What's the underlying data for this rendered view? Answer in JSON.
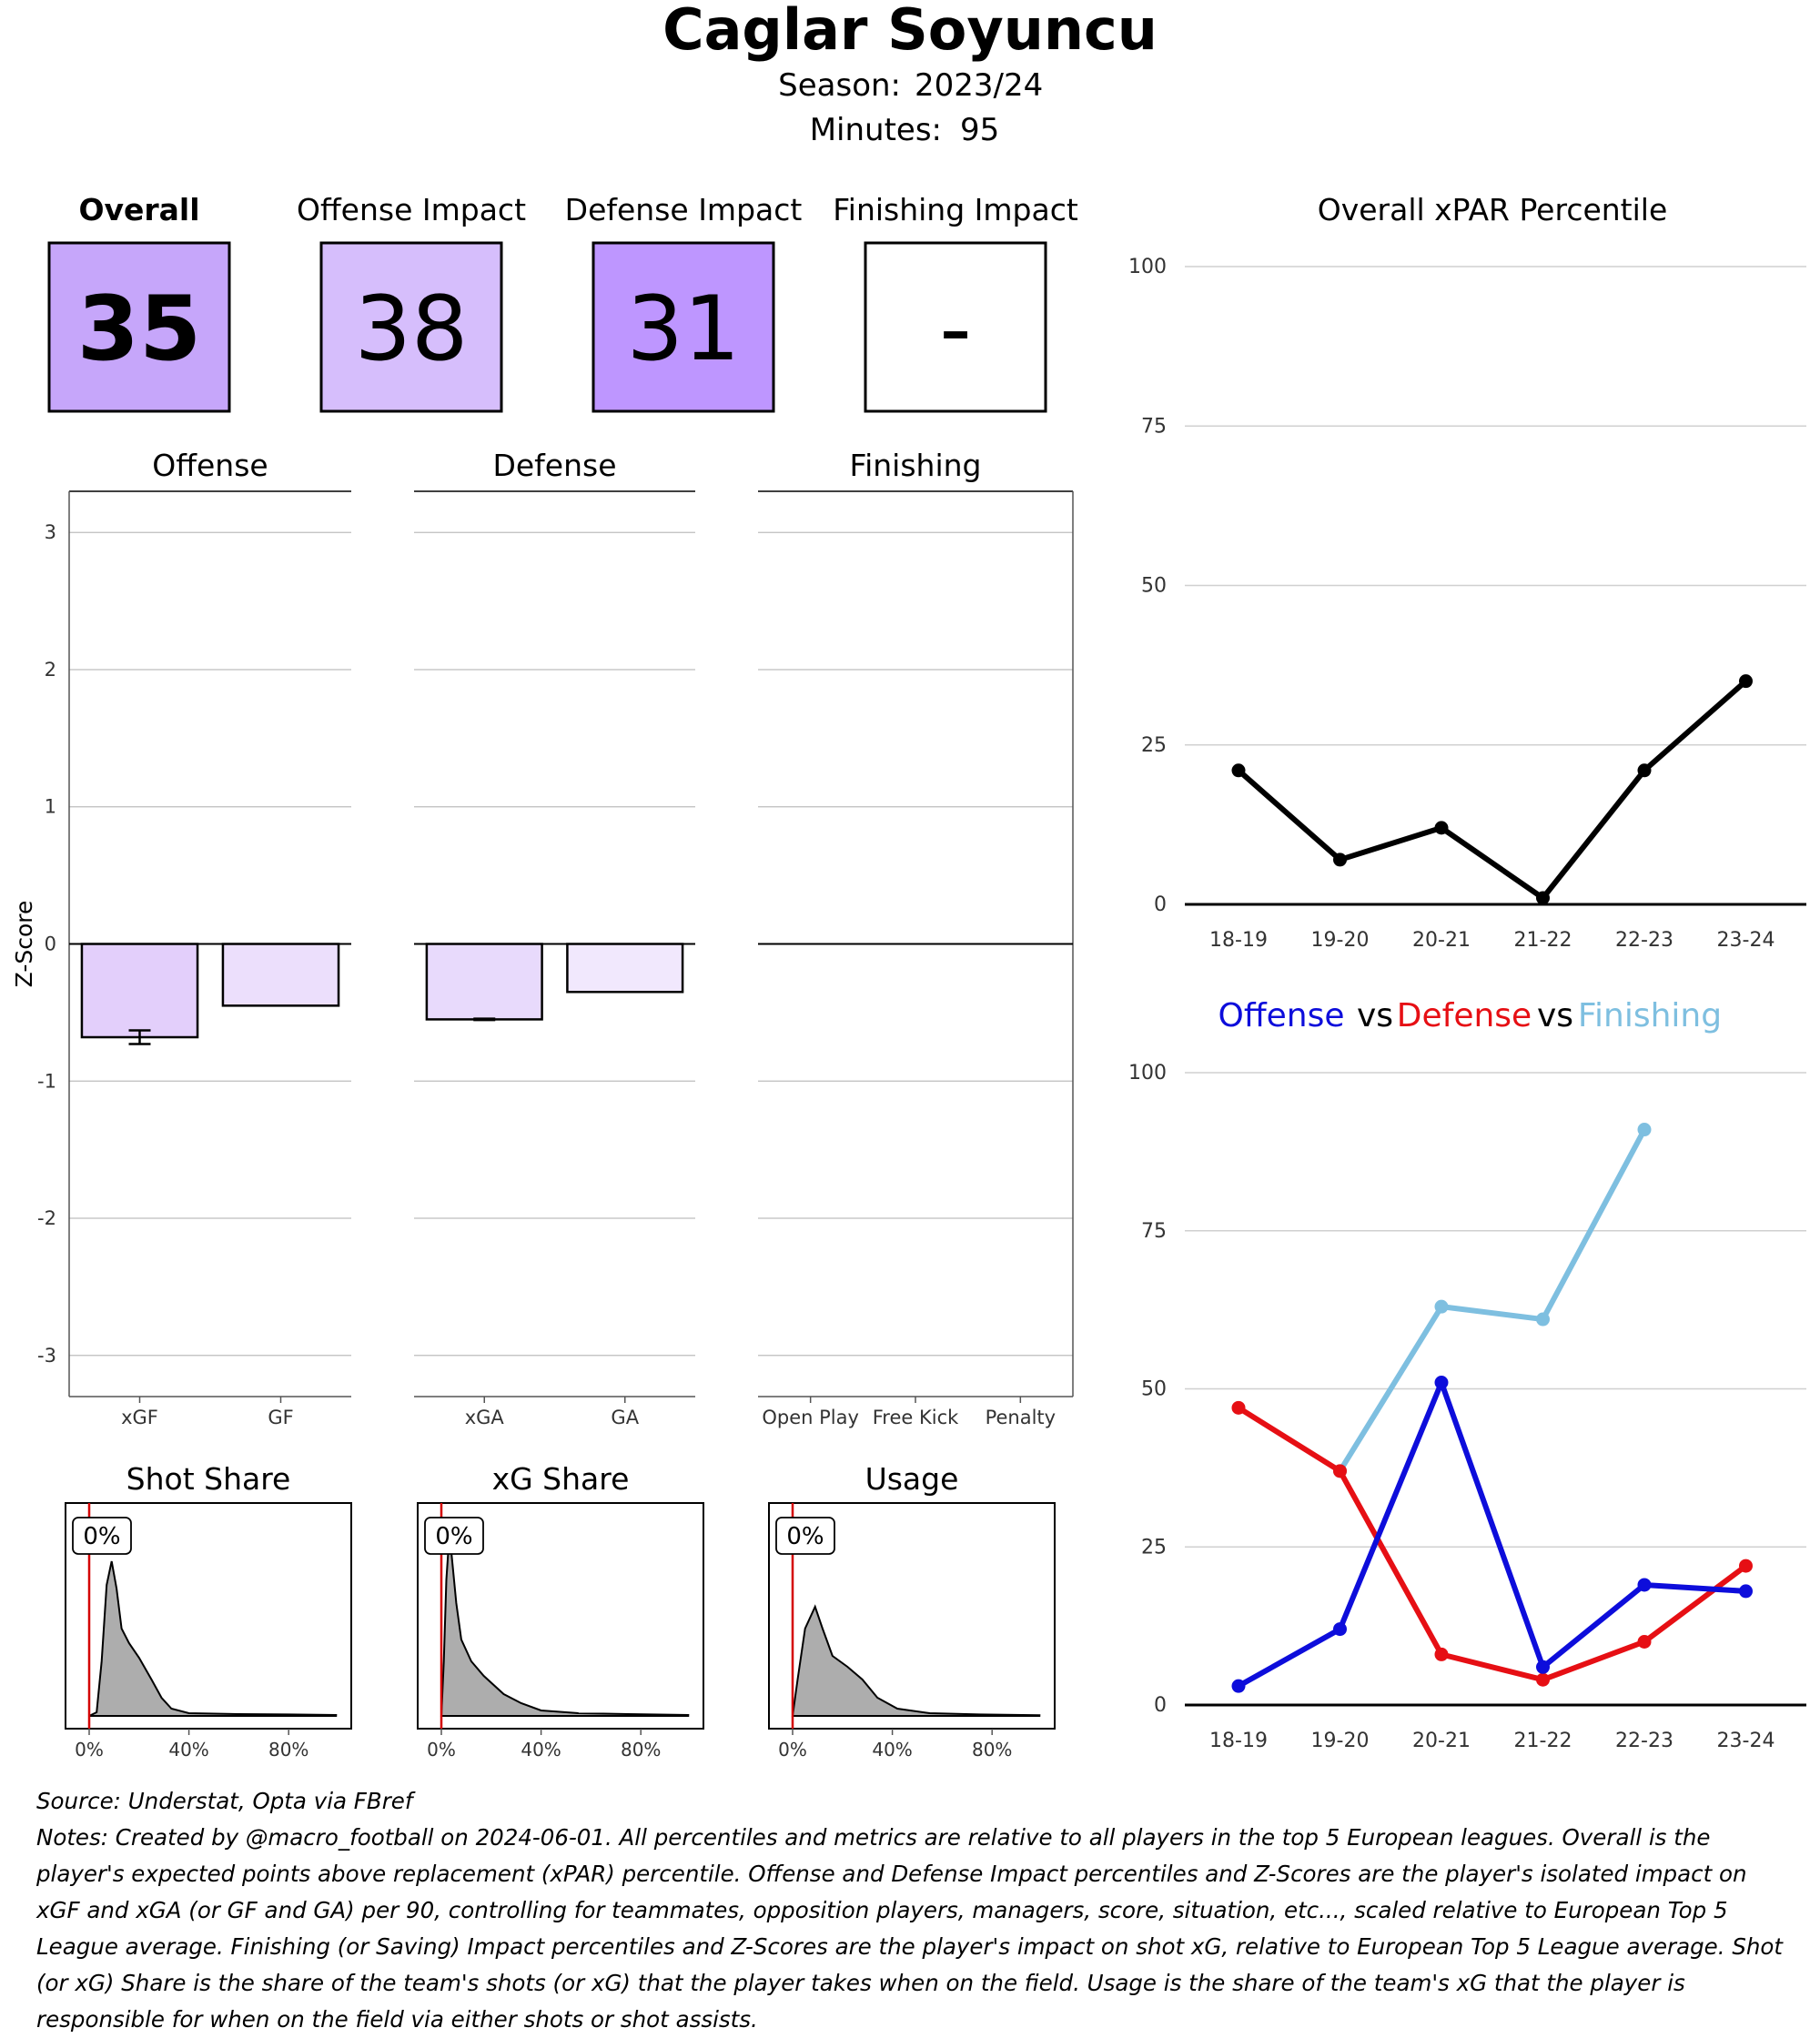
{
  "header": {
    "player_name": "Caglar Soyuncu",
    "season_label": "Season:",
    "season_value": "2023/24",
    "minutes_label": "Minutes:",
    "minutes_value": "95"
  },
  "tiles": [
    {
      "title": "Overall",
      "value": "35",
      "color": "#c6a6fa",
      "title_bold": true
    },
    {
      "title": "Offense Impact",
      "value": "38",
      "color": "#d6befc",
      "title_bold": false
    },
    {
      "title": "Defense Impact",
      "value": "31",
      "color": "#be96ff",
      "title_bold": false
    },
    {
      "title": "Finishing Impact",
      "value": "-",
      "color": "#ffffff",
      "title_bold": false
    }
  ],
  "zscore": {
    "ylabel": "Z-Score",
    "ylim": [
      -3.3,
      3.3
    ],
    "yticks": [
      3,
      2,
      1,
      0,
      -1,
      -2,
      -3
    ],
    "panels": [
      {
        "title": "Offense",
        "categories": [
          "xGF",
          "GF"
        ],
        "values": [
          -0.68,
          -0.45
        ],
        "colors": [
          "#e3cffb",
          "#ecdffc"
        ],
        "error": [
          [
            -0.73,
            -0.63
          ],
          null
        ]
      },
      {
        "title": "Defense",
        "categories": [
          "xGA",
          "GA"
        ],
        "values": [
          -0.55,
          -0.35
        ],
        "colors": [
          "#e8dafc",
          "#f1e8fd"
        ],
        "error": [
          [
            -0.555,
            -0.545
          ],
          null
        ]
      },
      {
        "title": "Finishing",
        "categories": [
          "Open Play",
          "Free Kick",
          "Penalty"
        ],
        "values": [
          0,
          0,
          0
        ],
        "colors": [
          "#ffffff",
          "#ffffff",
          "#ffffff"
        ],
        "error": [
          null,
          null,
          null
        ]
      }
    ]
  },
  "shares": [
    {
      "title": "Shot Share",
      "label": "0%",
      "value": 0
    },
    {
      "title": "xG Share",
      "label": "0%",
      "value": 0
    },
    {
      "title": "Usage",
      "label": "0%",
      "value": 0
    }
  ],
  "share_xticks": [
    "0%",
    "40%",
    "80%"
  ],
  "xpar_chart": {
    "title": "Overall xPAR Percentile",
    "seasons": [
      "18-19",
      "19-20",
      "20-21",
      "21-22",
      "22-23",
      "23-24"
    ],
    "yticks": [
      0,
      25,
      50,
      75,
      100
    ],
    "values": [
      21,
      7,
      12,
      1,
      21,
      35
    ],
    "color": "#000000"
  },
  "ovd_chart": {
    "legend": [
      {
        "name": "Offense",
        "color": "#0d0ddb"
      },
      {
        "name": "vs",
        "color": "#000000"
      },
      {
        "name": "Defense",
        "color": "#e60f14"
      },
      {
        "name": "vs",
        "color": "#000000"
      },
      {
        "name": "Finishing",
        "color": "#7ebfe0"
      }
    ],
    "seasons": [
      "18-19",
      "19-20",
      "20-21",
      "21-22",
      "22-23",
      "23-24"
    ],
    "yticks": [
      0,
      25,
      50,
      75,
      100
    ],
    "series": [
      {
        "name": "Finishing",
        "color": "#7ebfe0",
        "values": [
          null,
          37,
          63,
          61,
          91,
          null
        ]
      },
      {
        "name": "Defense",
        "color": "#e60f14",
        "values": [
          47,
          37,
          8,
          4,
          10,
          22
        ]
      },
      {
        "name": "Offense",
        "color": "#0d0ddb",
        "values": [
          3,
          12,
          51,
          6,
          19,
          18
        ]
      }
    ]
  },
  "chart_data": [
    {
      "type": "bar",
      "title": "Offense",
      "ylabel": "Z-Score",
      "categories": [
        "xGF",
        "GF"
      ],
      "values": [
        -0.68,
        -0.45
      ],
      "ylim": [
        -3.3,
        3.3
      ]
    },
    {
      "type": "bar",
      "title": "Defense",
      "ylabel": "Z-Score",
      "categories": [
        "xGA",
        "GA"
      ],
      "values": [
        -0.55,
        -0.35
      ],
      "ylim": [
        -3.3,
        3.3
      ]
    },
    {
      "type": "bar",
      "title": "Finishing",
      "ylabel": "Z-Score",
      "categories": [
        "Open Play",
        "Free Kick",
        "Penalty"
      ],
      "values": [
        0,
        0,
        0
      ],
      "ylim": [
        -3.3,
        3.3
      ]
    },
    {
      "type": "line",
      "title": "Overall xPAR Percentile",
      "x": [
        "18-19",
        "19-20",
        "20-21",
        "21-22",
        "22-23",
        "23-24"
      ],
      "values": [
        21,
        7,
        12,
        1,
        21,
        35
      ],
      "ylim": [
        0,
        100
      ]
    },
    {
      "type": "line",
      "x": [
        "18-19",
        "19-20",
        "20-21",
        "21-22",
        "22-23",
        "23-24"
      ],
      "ylim": [
        0,
        100
      ],
      "series": [
        {
          "name": "Offense",
          "values": [
            3,
            12,
            51,
            6,
            19,
            18
          ]
        },
        {
          "name": "Defense",
          "values": [
            47,
            37,
            8,
            4,
            10,
            22
          ]
        },
        {
          "name": "Finishing",
          "values": [
            null,
            37,
            63,
            61,
            91,
            null
          ]
        }
      ]
    },
    {
      "type": "area",
      "title": "Shot Share",
      "value": 0,
      "xticks": [
        "0%",
        "40%",
        "80%"
      ]
    },
    {
      "type": "area",
      "title": "xG Share",
      "value": 0,
      "xticks": [
        "0%",
        "40%",
        "80%"
      ]
    },
    {
      "type": "area",
      "title": "Usage",
      "value": 0,
      "xticks": [
        "0%",
        "40%",
        "80%"
      ]
    }
  ],
  "footer": {
    "source": "Source: Understat, Opta via FBref",
    "notes": "Notes: Created by @macro_football on 2024-06-01. All percentiles and metrics are relative to all players in the top 5 European leagues. Overall is the player's expected points above replacement (xPAR) percentile. Offense and Defense Impact percentiles and Z-Scores are the player's isolated impact on xGF and xGA (or GF and GA) per 90, controlling for teammates, opposition players, managers, score, situation, etc..., scaled relative to European Top 5 League average. Finishing (or Saving) Impact percentiles and Z-Scores are the player's impact on shot xG, relative to European Top 5 League average. Shot (or xG) Share is the share of the team's shots (or xG) that the player takes when on the field. Usage is the share of the team's xG that the player is responsible for when on the field via either shots or shot assists."
  }
}
